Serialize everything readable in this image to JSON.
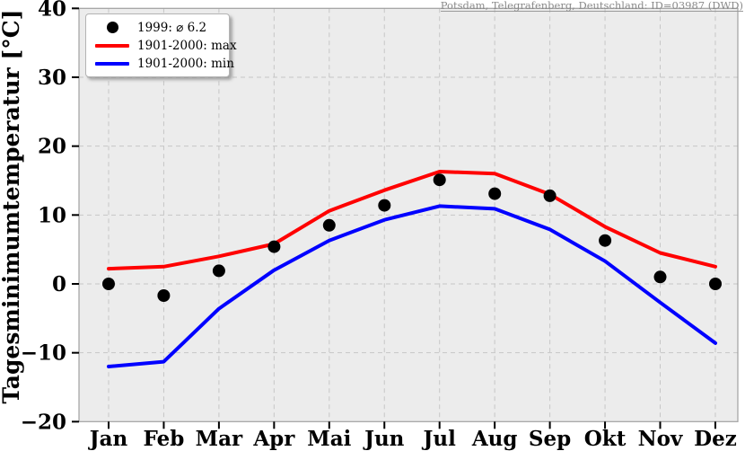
{
  "station_label": "Potsdam, Telegrafenberg, Deutschland: ID=03987 (DWD)",
  "colors": {
    "plot_bg": "#ececec",
    "grid": "#c6c6c6",
    "spine": "#a0a0a0",
    "tick": "#000000",
    "dot": "#000000",
    "max_line": "#ff0000",
    "min_line": "#0000ff",
    "station_text": "#8a8a8a"
  },
  "chart_data": {
    "type": "line",
    "title": "",
    "xlabel": "",
    "ylabel": "Tagesminimumtemperatur [°C]",
    "categories": [
      "Jan",
      "Feb",
      "Mar",
      "Apr",
      "Mai",
      "Jun",
      "Jul",
      "Aug",
      "Sep",
      "Okt",
      "Nov",
      "Dez"
    ],
    "ylim": [
      -20,
      40
    ],
    "yticks": [
      40,
      30,
      20,
      10,
      0,
      -10,
      -20
    ],
    "ytick_labels": [
      "40",
      "30",
      "20",
      "10",
      "0",
      "−10",
      "−20"
    ],
    "grid": true,
    "grid_style": "dashed",
    "legend_position": "upper-left",
    "annotation_mean_1999": 6.2,
    "series": [
      {
        "name": "1999: ⌀ 6.2",
        "type": "scatter",
        "color": "#000000",
        "values": [
          0.0,
          -1.7,
          1.9,
          5.4,
          8.5,
          11.4,
          15.1,
          13.1,
          12.8,
          6.3,
          1.0,
          0.0
        ]
      },
      {
        "name": "1901-2000: max",
        "type": "line",
        "color": "#ff0000",
        "values": [
          2.2,
          2.5,
          4.0,
          5.8,
          10.6,
          13.6,
          16.3,
          16.0,
          13.0,
          8.3,
          4.5,
          2.5
        ]
      },
      {
        "name": "1901-2000: min",
        "type": "line",
        "color": "#0000ff",
        "values": [
          -12.0,
          -11.3,
          -3.6,
          2.0,
          6.3,
          9.3,
          11.3,
          10.9,
          7.9,
          3.3,
          -2.7,
          -8.6
        ]
      }
    ]
  }
}
